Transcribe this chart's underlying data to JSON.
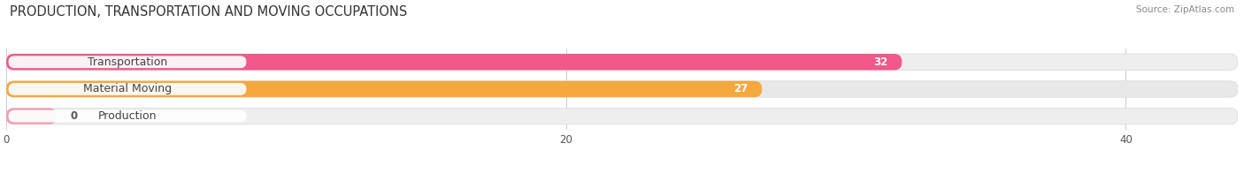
{
  "title": "PRODUCTION, TRANSPORTATION AND MOVING OCCUPATIONS",
  "source": "Source: ZipAtlas.com",
  "categories": [
    "Transportation",
    "Material Moving",
    "Production"
  ],
  "values": [
    32,
    27,
    0
  ],
  "bar_colors": [
    "#f2588a",
    "#f5a83c",
    "#f0a0b0"
  ],
  "background_color": "#ffffff",
  "xlim_max": 44,
  "xticks": [
    0,
    20,
    40
  ],
  "title_fontsize": 10.5,
  "label_fontsize": 9,
  "value_fontsize": 8.5,
  "figsize": [
    14.06,
    1.96
  ],
  "dpi": 100,
  "row_bg": "#ebebeb",
  "row_bg_alt": "#f5f5f5",
  "capsule_bg": "#f0f0f0"
}
